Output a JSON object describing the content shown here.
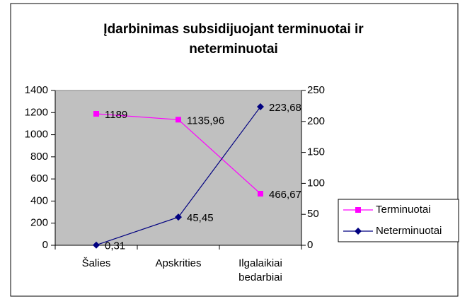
{
  "chart_data": {
    "type": "line",
    "title": "Įdarbinimas subsidijuojant terminuotai ir neterminuotai",
    "categories": [
      "Šalies",
      "Apskrities",
      "Ilgalaikiai bedarbiai"
    ],
    "series": [
      {
        "name": "Terminuotai",
        "color": "#ff00ff",
        "marker": "square",
        "values": [
          1189,
          1135.96,
          466.67
        ],
        "value_labels": [
          "1189",
          "1135,96",
          "466,67"
        ]
      },
      {
        "name": "Neterminuotai",
        "color": "#000080",
        "marker": "diamond",
        "axis": "y2",
        "values": [
          0.31,
          45.45,
          223.68
        ],
        "value_labels": [
          "0,31",
          "45,45",
          "223,68"
        ]
      }
    ],
    "ylim": [
      0,
      1400
    ],
    "yticks": [
      0,
      200,
      400,
      600,
      800,
      1000,
      1200,
      1400
    ],
    "y2lim": [
      0,
      250
    ],
    "y2ticks": [
      0,
      50,
      100,
      150,
      200,
      250
    ],
    "plot_background": "#c0c0c0",
    "legend": "right"
  }
}
